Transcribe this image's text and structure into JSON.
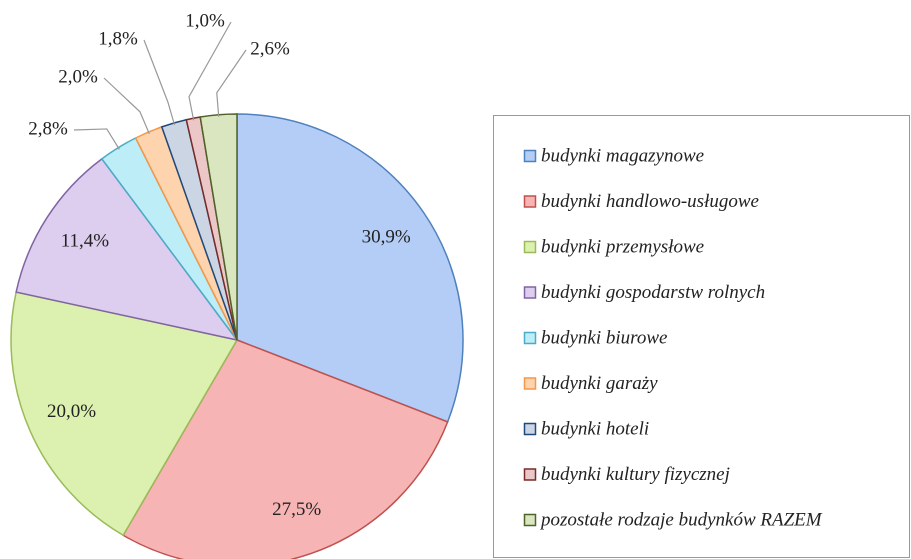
{
  "chart_data": {
    "type": "pie",
    "categories": [
      "budynki magazynowe",
      "budynki handlowo-usługowe",
      "budynki przemysłowe",
      "budynki gospodarstw rolnych",
      "budynki biurowe",
      "budynki garaży",
      "budynki hoteli",
      "budynki kultury fizycznej",
      "pozostałe rodzaje budynków RAZEM"
    ],
    "values": [
      30.9,
      27.5,
      20.0,
      11.4,
      2.8,
      2.0,
      1.8,
      1.0,
      2.6
    ],
    "value_labels": [
      "30,9%",
      "27,5%",
      "20,0%",
      "11,4%",
      "2,8%",
      "2,0%",
      "1,8%",
      "1,0%",
      "2,6%"
    ],
    "colors": [
      "#4f81bd",
      "#c0504d",
      "#9bbb59",
      "#8064a2",
      "#4bacc6",
      "#f79646",
      "#1f497d",
      "#772c2a",
      "#4f6228"
    ],
    "fills": [
      "#b4cdf7",
      "#f7b4b4",
      "#dcf0b0",
      "#ddcdee",
      "#bdeef7",
      "#fdd4ae",
      "#cbd5e3",
      "#ebc7c7",
      "#d9e6c0"
    ],
    "legend": "right"
  }
}
